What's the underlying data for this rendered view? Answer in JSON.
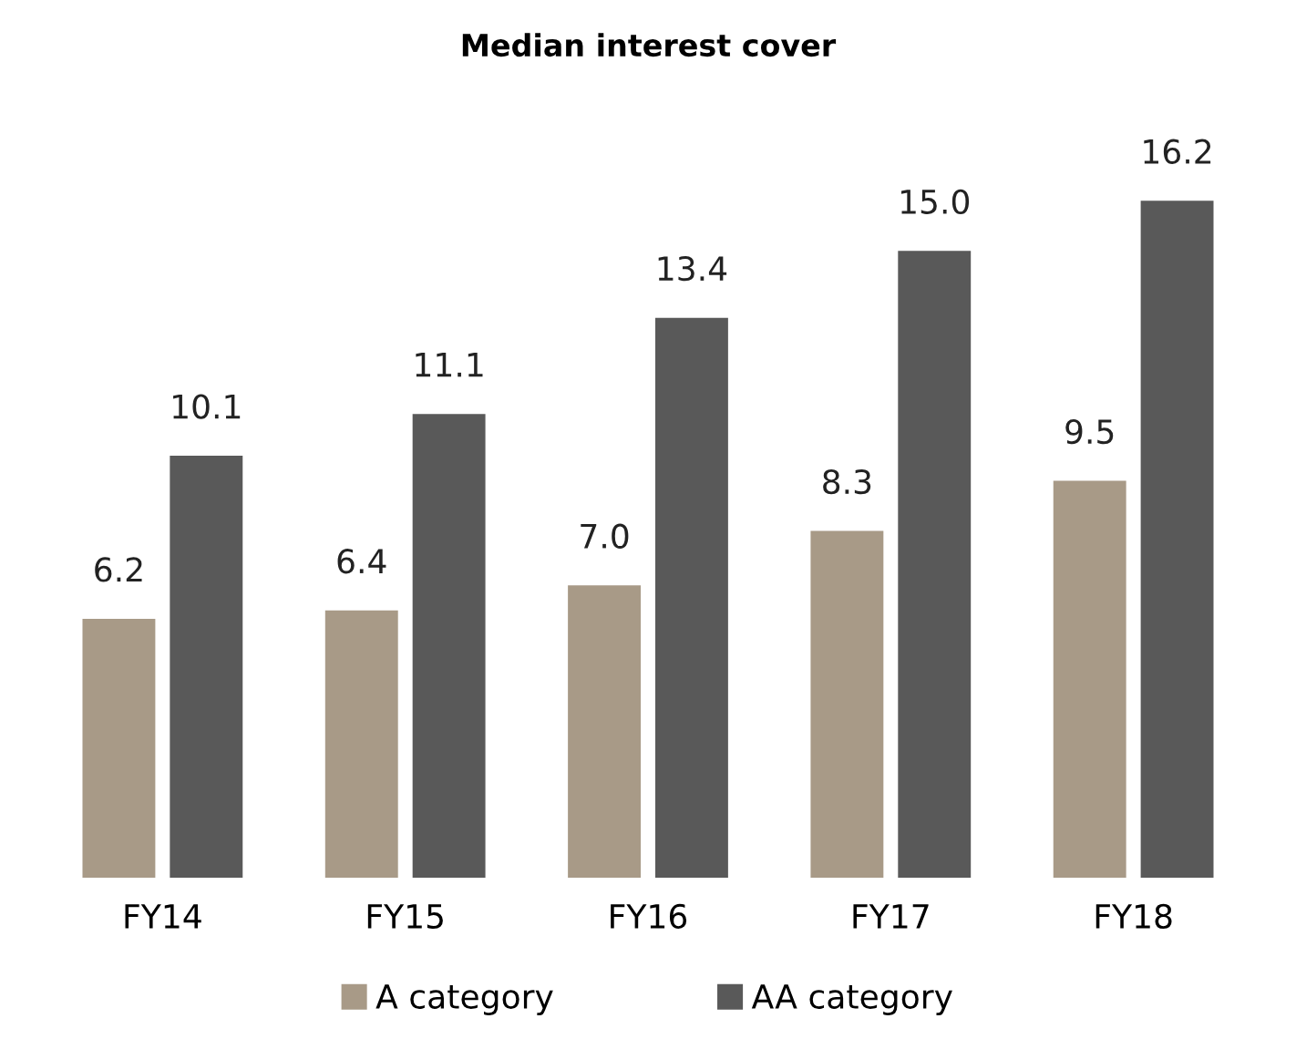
{
  "chart_data": {
    "type": "bar",
    "title": "Median interest cover",
    "categories": [
      "FY14",
      "FY15",
      "FY16",
      "FY17",
      "FY18"
    ],
    "series": [
      {
        "name": "A category",
        "color": "#a89a87",
        "values": [
          6.2,
          6.4,
          7.0,
          8.3,
          9.5
        ],
        "value_labels": [
          "6.2",
          "6.4",
          "7.0",
          "8.3",
          "9.5"
        ]
      },
      {
        "name": "AA category",
        "color": "#595959",
        "values": [
          10.1,
          11.1,
          13.4,
          15.0,
          16.2
        ],
        "value_labels": [
          "10.1",
          "11.1",
          "13.4",
          "15.0",
          "16.2"
        ]
      }
    ],
    "legend": "bottom",
    "grid": false
  }
}
